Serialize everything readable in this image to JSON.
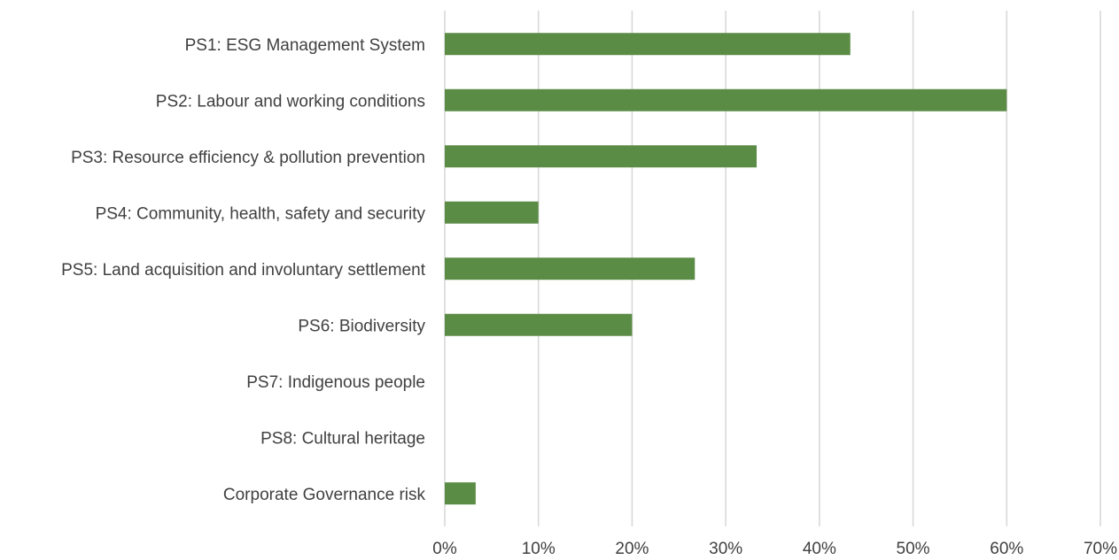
{
  "chart_data": {
    "type": "bar",
    "orientation": "horizontal",
    "title": "",
    "xlabel": "",
    "ylabel": "",
    "categories": [
      "PS1: ESG Management System",
      "PS2: Labour and working conditions",
      "PS3: Resource efficiency & pollution prevention",
      "PS4: Community, health, safety and security",
      "PS5: Land acquisition and involuntary settlement",
      "PS6: Biodiversity",
      "PS7: Indigenous people",
      "PS8: Cultural heritage",
      "Corporate Governance risk"
    ],
    "values": [
      0.433,
      0.6,
      0.333,
      0.1,
      0.267,
      0.2,
      0,
      0,
      0.033
    ],
    "xlim": [
      0,
      0.7
    ],
    "xticks": [
      0,
      0.1,
      0.2,
      0.3,
      0.4,
      0.5,
      0.6,
      0.7
    ],
    "xtick_labels": [
      "0%",
      "10%",
      "20%",
      "30%",
      "40%",
      "50%",
      "60%",
      "70%"
    ],
    "grid": "vertical",
    "legend": "none",
    "bar_color": "#5b8c45"
  }
}
